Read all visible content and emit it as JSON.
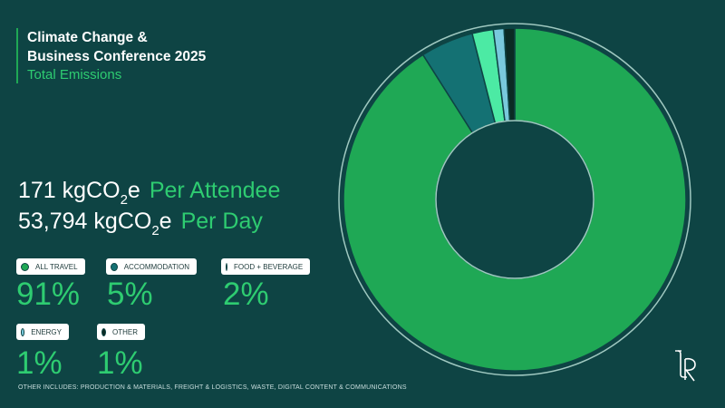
{
  "title": {
    "line1": "Climate Change &",
    "line2": "Business Conference 2025",
    "subtitle": "Total Emissions"
  },
  "stats": [
    {
      "number": "171 kgCO",
      "subscript": "2",
      "suffix": "e",
      "label": "Per Attendee"
    },
    {
      "number": "53,794 kgCO",
      "subscript": "2",
      "suffix": "e",
      "label": "Per Day"
    }
  ],
  "legend": {
    "all_travel": {
      "label": "ALL TRAVEL",
      "percent": "91%",
      "color": "#1fa855"
    },
    "accommodation": {
      "label": "ACCOMMODATION",
      "percent": "5%",
      "color": "#147173"
    },
    "food_beverage": {
      "label": "FOOD + BEVERAGE",
      "percent": "2%",
      "color": "#4ceaa4"
    },
    "energy": {
      "label": "ENERGY",
      "percent": "1%",
      "color": "#79c9dd"
    },
    "other": {
      "label": "OTHER",
      "percent": "1%",
      "color": "#0b2a24"
    }
  },
  "footnote": "OTHER INCLUDES: PRODUCTION & MATERIALS, FREIGHT & LOGISTICS, WASTE, DIGITAL CONTENT & COMMUNICATIONS",
  "logo_text": "LR",
  "chart_data": {
    "type": "pie",
    "donut": true,
    "categories": [
      "ALL TRAVEL",
      "ACCOMMODATION",
      "FOOD + BEVERAGE",
      "ENERGY",
      "OTHER"
    ],
    "values": [
      91,
      5,
      2,
      1,
      1
    ],
    "colors": [
      "#1fa855",
      "#147173",
      "#4ceaa4",
      "#79c9dd",
      "#0b2a24"
    ],
    "order_clockwise_from_top": [
      "ALL TRAVEL",
      "ACCOMMODATION",
      "FOOD + BEVERAGE",
      "ENERGY",
      "OTHER"
    ],
    "unit": "%"
  }
}
